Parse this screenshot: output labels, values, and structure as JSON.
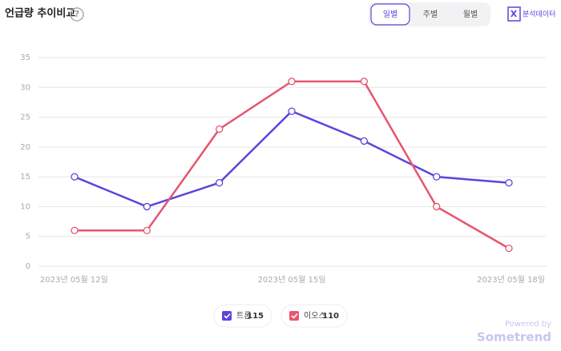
{
  "header": {
    "title": "언급량 추이비교",
    "help_icon": "?",
    "tabs": [
      "일별",
      "주별",
      "월별"
    ],
    "active_tab": 0,
    "export_icon": "X",
    "export_label": "분석데이터"
  },
  "chart_data": {
    "type": "line",
    "categories": [
      "2023년 05월 12일",
      null,
      null,
      "2023년 05월 15일",
      null,
      null,
      "2023년 05월 18일"
    ],
    "series": [
      {
        "name": "트론",
        "total": 115,
        "color": "#5a46dc",
        "values": [
          15,
          10,
          14,
          26,
          21,
          15,
          14
        ]
      },
      {
        "name": "이오스",
        "total": 110,
        "color": "#e5566f",
        "values": [
          6,
          6,
          23,
          31,
          31,
          10,
          3
        ]
      }
    ],
    "ylim": [
      0,
      35
    ],
    "yticks": [
      0,
      5,
      10,
      15,
      20,
      25,
      30,
      35
    ],
    "grid": true
  },
  "footer": {
    "powered": "Powered by",
    "brand": "Sometrend"
  }
}
